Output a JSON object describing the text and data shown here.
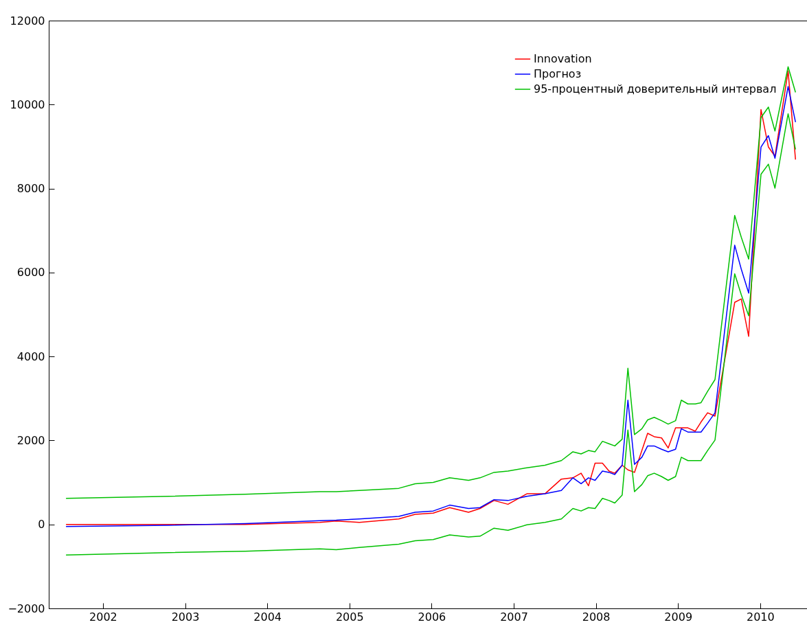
{
  "chart_data": {
    "type": "line",
    "x": [
      2001.55,
      2002.8,
      2003.73,
      2004.64,
      2004.84,
      2005.12,
      2005.6,
      2005.8,
      2006.02,
      2006.22,
      2006.45,
      2006.59,
      2006.76,
      2006.93,
      2007.16,
      2007.38,
      2007.58,
      2007.72,
      2007.82,
      2007.91,
      2007.99,
      2008.08,
      2008.16,
      2008.23,
      2008.32,
      2008.39,
      2008.47,
      2008.56,
      2008.63,
      2008.71,
      2008.8,
      2008.88,
      2008.97,
      2009.04,
      2009.12,
      2009.21,
      2009.28,
      2009.36,
      2009.45,
      2009.69,
      2009.77,
      2009.86,
      2010.01,
      2010.1,
      2010.18,
      2010.34,
      2010.43
    ],
    "series": [
      {
        "name": "Innovation",
        "color": "#ff0000",
        "values": [
          0,
          0,
          0,
          50,
          80,
          50,
          130,
          240,
          270,
          400,
          290,
          380,
          570,
          480,
          730,
          730,
          1080,
          1110,
          1220,
          920,
          1460,
          1460,
          1270,
          1220,
          1410,
          1300,
          1240,
          1760,
          2170,
          2090,
          2060,
          1820,
          2300,
          2300,
          2300,
          2220,
          2440,
          2660,
          2580,
          5290,
          5370,
          4480,
          9880,
          8990,
          8770,
          10800,
          8690
        ]
      },
      {
        "name": "Прогноз",
        "color": "#0000ff",
        "values": [
          -50,
          -20,
          20,
          90,
          100,
          130,
          190,
          290,
          320,
          460,
          380,
          400,
          590,
          570,
          670,
          730,
          810,
          1110,
          970,
          1110,
          1050,
          1270,
          1240,
          1190,
          1410,
          2960,
          1430,
          1600,
          1870,
          1870,
          1790,
          1730,
          1790,
          2280,
          2200,
          2200,
          2200,
          2410,
          2660,
          6650,
          6080,
          5510,
          8990,
          9260,
          8720,
          10430,
          9580
        ]
      },
      {
        "name": "95-процентный доверительный интервал",
        "color": "#00c000",
        "values": [
          620,
          670,
          720,
          780,
          780,
          810,
          860,
          970,
          1000,
          1110,
          1050,
          1110,
          1240,
          1270,
          1350,
          1410,
          1520,
          1730,
          1680,
          1760,
          1730,
          1980,
          1920,
          1870,
          2030,
          3720,
          2140,
          2280,
          2490,
          2550,
          2470,
          2390,
          2470,
          2960,
          2870,
          2870,
          2900,
          3170,
          3450,
          7360,
          6840,
          6320,
          9690,
          9940,
          9370,
          10900,
          10290
        ]
      },
      {
        "color": "#00c000",
        "values": [
          -730,
          -670,
          -640,
          -580,
          -600,
          -550,
          -470,
          -390,
          -360,
          -250,
          -300,
          -280,
          -90,
          -140,
          -10,
          50,
          130,
          380,
          320,
          400,
          380,
          620,
          570,
          510,
          700,
          2250,
          780,
          950,
          1160,
          1220,
          1140,
          1050,
          1140,
          1600,
          1520,
          1520,
          1520,
          1760,
          2010,
          5970,
          5470,
          4970,
          8340,
          8580,
          8010,
          9780,
          8930
        ]
      }
    ],
    "xlim": [
      2001.34,
      2010.57
    ],
    "xticks": [
      2002,
      2003,
      2004,
      2005,
      2006,
      2007,
      2008,
      2009,
      2010
    ],
    "ylim": [
      -2000,
      12000
    ],
    "yticks": [
      -2000,
      0,
      2000,
      4000,
      6000,
      8000,
      10000,
      12000
    ],
    "legend": "top right"
  }
}
